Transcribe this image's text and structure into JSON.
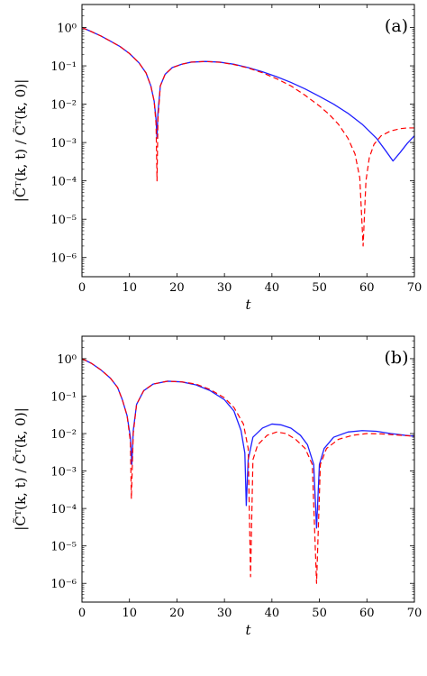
{
  "chart_data": [
    {
      "type": "line",
      "panel_label": "(a)",
      "xlabel": "t",
      "ylabel": "|C̃ᵀ(k, t) / C̃ᵀ(k, 0)|",
      "xlim": [
        0,
        70
      ],
      "ylim_exp": [
        -6.5,
        0.6
      ],
      "y_scale": "log",
      "grid": false,
      "x_ticks": [
        0,
        10,
        20,
        30,
        40,
        50,
        60,
        70
      ],
      "y_ticks": [
        "10⁰",
        "10⁻¹",
        "10⁻²",
        "10⁻³",
        "10⁻⁴",
        "10⁻⁵",
        "10⁻⁶"
      ],
      "series": [
        {
          "color": "#1f1fff",
          "style": "solid",
          "points": [
            [
              0,
              1.0
            ],
            [
              2,
              0.78
            ],
            [
              4,
              0.6
            ],
            [
              6,
              0.44
            ],
            [
              8,
              0.32
            ],
            [
              10,
              0.21
            ],
            [
              12,
              0.12
            ],
            [
              13.5,
              0.065
            ],
            [
              14.5,
              0.03
            ],
            [
              15.2,
              0.012
            ],
            [
              15.6,
              0.004
            ],
            [
              15.8,
              0.0013
            ],
            [
              16.0,
              0.006
            ],
            [
              16.5,
              0.03
            ],
            [
              17.5,
              0.06
            ],
            [
              19,
              0.09
            ],
            [
              21,
              0.11
            ],
            [
              23,
              0.125
            ],
            [
              26,
              0.13
            ],
            [
              29,
              0.125
            ],
            [
              32,
              0.11
            ],
            [
              35,
              0.09
            ],
            [
              38,
              0.07
            ],
            [
              41,
              0.052
            ],
            [
              44,
              0.037
            ],
            [
              47,
              0.025
            ],
            [
              50,
              0.016
            ],
            [
              53,
              0.01
            ],
            [
              56,
              0.0058
            ],
            [
              59,
              0.003
            ],
            [
              62,
              0.0013
            ],
            [
              64,
              0.0006
            ],
            [
              65.5,
              0.00033
            ],
            [
              67,
              0.00055
            ],
            [
              68.5,
              0.00095
            ],
            [
              70,
              0.0015
            ]
          ]
        },
        {
          "color": "#ff0000",
          "style": "dashed",
          "points": [
            [
              0,
              1.0
            ],
            [
              2,
              0.78
            ],
            [
              4,
              0.6
            ],
            [
              6,
              0.44
            ],
            [
              8,
              0.32
            ],
            [
              10,
              0.21
            ],
            [
              12,
              0.12
            ],
            [
              13.5,
              0.065
            ],
            [
              14.5,
              0.03
            ],
            [
              15.2,
              0.012
            ],
            [
              15.6,
              0.003
            ],
            [
              15.8,
              0.0001
            ],
            [
              16.0,
              0.004
            ],
            [
              16.5,
              0.03
            ],
            [
              17.5,
              0.06
            ],
            [
              19,
              0.09
            ],
            [
              21,
              0.11
            ],
            [
              23,
              0.125
            ],
            [
              26,
              0.13
            ],
            [
              29,
              0.124
            ],
            [
              32,
              0.108
            ],
            [
              35,
              0.088
            ],
            [
              38,
              0.066
            ],
            [
              41,
              0.046
            ],
            [
              44,
              0.03
            ],
            [
              47,
              0.017
            ],
            [
              50,
              0.009
            ],
            [
              52,
              0.0055
            ],
            [
              54,
              0.003
            ],
            [
              56,
              0.0013
            ],
            [
              57.5,
              0.0005
            ],
            [
              58.5,
              0.00012
            ],
            [
              59.2,
              2e-06
            ],
            [
              59.8,
              0.0001
            ],
            [
              60.5,
              0.0004
            ],
            [
              61.5,
              0.0009
            ],
            [
              63,
              0.0015
            ],
            [
              65,
              0.002
            ],
            [
              67,
              0.0023
            ],
            [
              68.5,
              0.0024
            ],
            [
              70,
              0.0024
            ]
          ]
        }
      ]
    },
    {
      "type": "line",
      "panel_label": "(b)",
      "xlabel": "t",
      "ylabel": "|C̃ᵀ(k, t) / C̃ᵀ(k, 0)|",
      "xlim": [
        0,
        70
      ],
      "ylim_exp": [
        -6.5,
        0.6
      ],
      "y_scale": "log",
      "grid": false,
      "x_ticks": [
        0,
        10,
        20,
        30,
        40,
        50,
        60,
        70
      ],
      "y_ticks": [
        "10⁰",
        "10⁻¹",
        "10⁻²",
        "10⁻³",
        "10⁻⁴",
        "10⁻⁵",
        "10⁻⁶"
      ],
      "series": [
        {
          "color": "#1f1fff",
          "style": "solid",
          "points": [
            [
              0,
              1.0
            ],
            [
              2,
              0.75
            ],
            [
              4,
              0.5
            ],
            [
              6,
              0.3
            ],
            [
              7.5,
              0.17
            ],
            [
              8.5,
              0.08
            ],
            [
              9.5,
              0.03
            ],
            [
              10.2,
              0.008
            ],
            [
              10.5,
              0.0015
            ],
            [
              10.8,
              0.012
            ],
            [
              11.5,
              0.06
            ],
            [
              13,
              0.14
            ],
            [
              15,
              0.21
            ],
            [
              18,
              0.25
            ],
            [
              21,
              0.24
            ],
            [
              24,
              0.2
            ],
            [
              27,
              0.14
            ],
            [
              30,
              0.08
            ],
            [
              32,
              0.04
            ],
            [
              33.5,
              0.012
            ],
            [
              34.3,
              0.003
            ],
            [
              34.6,
              0.00012
            ],
            [
              35,
              0.002
            ],
            [
              36,
              0.008
            ],
            [
              38,
              0.014
            ],
            [
              40,
              0.018
            ],
            [
              42,
              0.017
            ],
            [
              44,
              0.014
            ],
            [
              46,
              0.009
            ],
            [
              47.5,
              0.005
            ],
            [
              48.8,
              0.0015
            ],
            [
              49.4,
              3e-05
            ],
            [
              50,
              0.0015
            ],
            [
              51,
              0.004
            ],
            [
              53,
              0.008
            ],
            [
              56,
              0.011
            ],
            [
              59,
              0.012
            ],
            [
              62,
              0.0115
            ],
            [
              65,
              0.01
            ],
            [
              68,
              0.009
            ],
            [
              70,
              0.0085
            ]
          ]
        },
        {
          "color": "#ff0000",
          "style": "dashed",
          "points": [
            [
              0,
              1.0
            ],
            [
              2,
              0.75
            ],
            [
              4,
              0.5
            ],
            [
              6,
              0.3
            ],
            [
              7.5,
              0.17
            ],
            [
              8.5,
              0.08
            ],
            [
              9.5,
              0.03
            ],
            [
              10.2,
              0.006
            ],
            [
              10.4,
              0.00018
            ],
            [
              10.8,
              0.01
            ],
            [
              11.5,
              0.06
            ],
            [
              13,
              0.14
            ],
            [
              15,
              0.21
            ],
            [
              18,
              0.25
            ],
            [
              21,
              0.24
            ],
            [
              24,
              0.21
            ],
            [
              27,
              0.15
            ],
            [
              30,
              0.09
            ],
            [
              32,
              0.05
            ],
            [
              34,
              0.018
            ],
            [
              35,
              0.004
            ],
            [
              35.5,
              1.5e-06
            ],
            [
              36,
              0.002
            ],
            [
              37,
              0.005
            ],
            [
              39,
              0.009
            ],
            [
              41,
              0.011
            ],
            [
              43,
              0.01
            ],
            [
              45,
              0.007
            ],
            [
              47,
              0.004
            ],
            [
              48.5,
              0.0015
            ],
            [
              49.4,
              1e-06
            ],
            [
              50.2,
              0.0015
            ],
            [
              51.5,
              0.004
            ],
            [
              54,
              0.007
            ],
            [
              57,
              0.009
            ],
            [
              60,
              0.01
            ],
            [
              63,
              0.0098
            ],
            [
              66,
              0.0092
            ],
            [
              70,
              0.0085
            ]
          ]
        }
      ]
    }
  ]
}
